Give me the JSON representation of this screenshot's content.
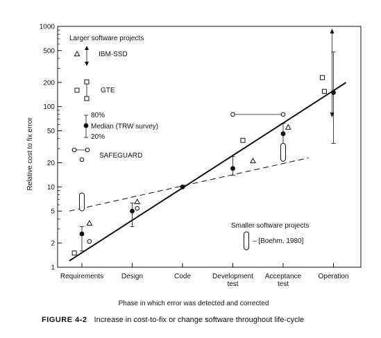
{
  "chart_data": {
    "type": "scatter",
    "ylabel": "Relative cost to fix error",
    "xlabel": "Phase in which error was detected and corrected",
    "y_scale": "log",
    "ylim": [
      1,
      1000
    ],
    "y_ticks": [
      "1",
      "2",
      "5",
      "10",
      "20",
      "50",
      "100",
      "200",
      "500",
      "1000"
    ],
    "categories": [
      "Requirements",
      "Design",
      "Code",
      "Development test",
      "Acceptance test",
      "Operation"
    ],
    "category_labels": [
      [
        "Requirements"
      ],
      [
        "Design"
      ],
      [
        "Code"
      ],
      [
        "Development",
        "test"
      ],
      [
        "Acceptance",
        "test"
      ],
      [
        "Operation"
      ]
    ],
    "legend_top": {
      "title": "Larger software projects",
      "ibm": "IBM-SSD",
      "gte": "GTE",
      "pct80": "80%",
      "median": "Median (TRW survey)",
      "pct20": "20%",
      "safeguard": "SAFEGUARD"
    },
    "legend_bottom": {
      "title": "Smaller software projects",
      "boehm": "– [Boehm, 1980]"
    },
    "series": [
      {
        "name": "IBM-SSD",
        "marker": "triangle",
        "points": [
          {
            "x": 0.15,
            "y": 3.5
          },
          {
            "x": 1.1,
            "y": 6.5
          },
          {
            "x": 3.4,
            "y": 21
          },
          {
            "x": 4.1,
            "y": 55
          }
        ]
      },
      {
        "name": "GTE",
        "marker": "square",
        "points": [
          {
            "x": -0.15,
            "y": 1.5
          },
          {
            "x": 3.2,
            "y": 38
          },
          {
            "x": 4.78,
            "y": 230
          },
          {
            "x": 4.82,
            "y": 155
          }
        ]
      },
      {
        "name": "Median (TRW survey)",
        "marker": "filled-circle",
        "points": [
          {
            "x": 0.0,
            "y": 2.6
          },
          {
            "x": 1.0,
            "y": 5.0
          },
          {
            "x": 2.0,
            "y": 10
          },
          {
            "x": 3.0,
            "y": 17
          },
          {
            "x": 4.0,
            "y": 46
          },
          {
            "x": 5.0,
            "y": 150
          }
        ],
        "ranges": [
          [
            1.6,
            3.2
          ],
          [
            3.2,
            6.3
          ],
          null,
          [
            14,
            24
          ],
          [
            28,
            62
          ],
          [
            35,
            480
          ]
        ]
      },
      {
        "name": "SAFEGUARD",
        "marker": "open-circle",
        "points": [
          {
            "x": 0.15,
            "y": 2.1
          },
          {
            "x": 1.1,
            "y": 5.4
          },
          {
            "x": 3.0,
            "y": 80
          },
          {
            "x": 4.0,
            "y": 80
          }
        ]
      },
      {
        "name": "Boehm, 1980",
        "marker": "oval",
        "points": [
          {
            "x": 0.0,
            "y": 6.5
          },
          {
            "x": 4.0,
            "y": 27
          }
        ]
      }
    ],
    "trend_large": {
      "x0": -0.25,
      "y0": 1.2,
      "x1": 5.25,
      "y1": 200
    },
    "trend_small": {
      "x0": -0.25,
      "y0": 5.0,
      "x1": 4.5,
      "y1": 23
    }
  },
  "caption": {
    "figure": "FIGURE 4-2",
    "text": "Increase in cost-to-fix or change software throughout life-cycle"
  }
}
